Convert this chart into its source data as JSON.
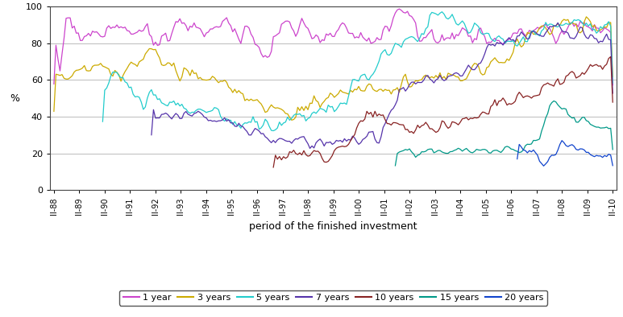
{
  "title": "",
  "xlabel": "period of the finished investment",
  "ylabel": "%",
  "ylim": [
    0,
    100
  ],
  "colors": {
    "1year": "#cc44cc",
    "3years": "#ccaa00",
    "5years": "#22cccc",
    "7years": "#5533aa",
    "10years": "#882222",
    "15years": "#009988",
    "20years": "#1144cc"
  },
  "xtick_labels": [
    "II-88",
    "II-89",
    "II-90",
    "II-91",
    "II-92",
    "II-93",
    "II-94",
    "II-95",
    "II-96",
    "II-97",
    "II-98",
    "II-99",
    "II-00",
    "II-01",
    "II-02",
    "II-03",
    "II-04",
    "II-05",
    "II-06",
    "II-07",
    "II-08",
    "II-09",
    "II-10"
  ],
  "background_color": "#ffffff",
  "grid_color": "#bbbbbb"
}
